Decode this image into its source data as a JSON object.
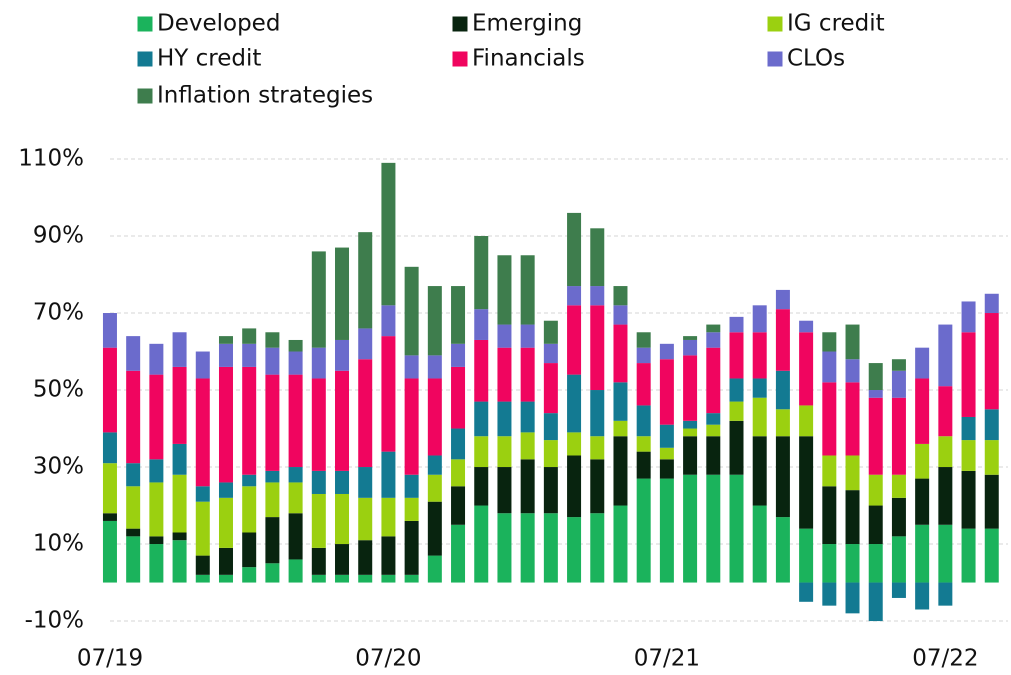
{
  "chart_data": {
    "type": "stacked_bar",
    "x": [
      0,
      1,
      2,
      3,
      4,
      5,
      6,
      7,
      8,
      9,
      10,
      11,
      12,
      13,
      14,
      15,
      16,
      17,
      18,
      19,
      20,
      21,
      22,
      23,
      24,
      25,
      26,
      27,
      28,
      29,
      30,
      31,
      32,
      33,
      34,
      35,
      36,
      37,
      38
    ],
    "xlim": [
      -0.3,
      38.7
    ],
    "xticks": [
      {
        "value": 0,
        "label": "07/19"
      },
      {
        "value": 12,
        "label": "07/20"
      },
      {
        "value": 24,
        "label": "07/21"
      },
      {
        "value": 36,
        "label": "07/22"
      }
    ],
    "ylim": [
      -13,
      112
    ],
    "yticks": [
      {
        "value": -10,
        "label": "-10%"
      },
      {
        "value": 10,
        "label": "10%"
      },
      {
        "value": 30,
        "label": "30%"
      },
      {
        "value": 50,
        "label": "50%"
      },
      {
        "value": 70,
        "label": "70%"
      },
      {
        "value": 90,
        "label": "90%"
      },
      {
        "value": 110,
        "label": "110%"
      }
    ],
    "grid": true,
    "series": [
      {
        "name": "Developed",
        "color": "#1bb35c",
        "values": [
          16,
          12,
          10,
          11,
          2,
          2,
          4,
          5,
          6,
          2,
          2,
          2,
          2,
          2,
          7,
          15,
          20,
          18,
          18,
          18,
          17,
          18,
          20,
          27,
          27,
          28,
          28,
          28,
          20,
          17,
          14,
          10,
          10,
          10,
          12,
          15,
          15,
          14,
          14
        ]
      },
      {
        "name": "Emerging",
        "color": "#08240f",
        "values": [
          2,
          2,
          2,
          2,
          5,
          7,
          9,
          12,
          12,
          7,
          8,
          9,
          10,
          14,
          14,
          10,
          10,
          12,
          14,
          12,
          16,
          14,
          18,
          7,
          5,
          10,
          10,
          14,
          18,
          21,
          24,
          15,
          14,
          10,
          10,
          12,
          15,
          15,
          14
        ]
      },
      {
        "name": "IG credit",
        "color": "#9bd010",
        "values": [
          13,
          11,
          14,
          15,
          14,
          13,
          12,
          9,
          8,
          14,
          13,
          11,
          10,
          6,
          7,
          7,
          8,
          8,
          7,
          7,
          6,
          6,
          4,
          4,
          3,
          2,
          3,
          5,
          10,
          7,
          8,
          8,
          9,
          8,
          6,
          9,
          8,
          8,
          9
        ]
      },
      {
        "name": "HY credit",
        "color": "#137a92",
        "values": [
          8,
          6,
          6,
          8,
          4,
          4,
          3,
          3,
          4,
          6,
          6,
          8,
          12,
          6,
          5,
          8,
          9,
          9,
          8,
          7,
          15,
          12,
          10,
          8,
          6,
          2,
          3,
          6,
          5,
          10,
          -5,
          -6,
          -8,
          -10,
          -4,
          -7,
          -6,
          6,
          8
        ]
      },
      {
        "name": "Financials",
        "color": "#f0055f",
        "values": [
          22,
          24,
          22,
          20,
          28,
          30,
          28,
          25,
          24,
          24,
          26,
          28,
          30,
          25,
          20,
          16,
          16,
          14,
          14,
          13,
          18,
          22,
          15,
          11,
          17,
          17,
          17,
          12,
          12,
          16,
          19,
          19,
          19,
          20,
          20,
          17,
          13,
          22,
          25
        ]
      },
      {
        "name": "CLOs",
        "color": "#6b6bcc",
        "values": [
          9,
          9,
          8,
          9,
          7,
          6,
          6,
          7,
          6,
          8,
          8,
          8,
          8,
          6,
          6,
          6,
          8,
          6,
          6,
          5,
          5,
          5,
          5,
          4,
          4,
          4,
          4,
          4,
          7,
          5,
          3,
          8,
          6,
          2,
          7,
          8,
          16,
          8,
          5
        ]
      },
      {
        "name": "Inflation strategies",
        "color": "#3e7d4d",
        "values": [
          0,
          0,
          0,
          0,
          0,
          2,
          4,
          4,
          3,
          25,
          24,
          25,
          37,
          23,
          18,
          15,
          19,
          18,
          18,
          6,
          19,
          15,
          5,
          4,
          0,
          1,
          2,
          0,
          0,
          0,
          0,
          5,
          9,
          7,
          3,
          0,
          0,
          0,
          0
        ]
      }
    ]
  }
}
